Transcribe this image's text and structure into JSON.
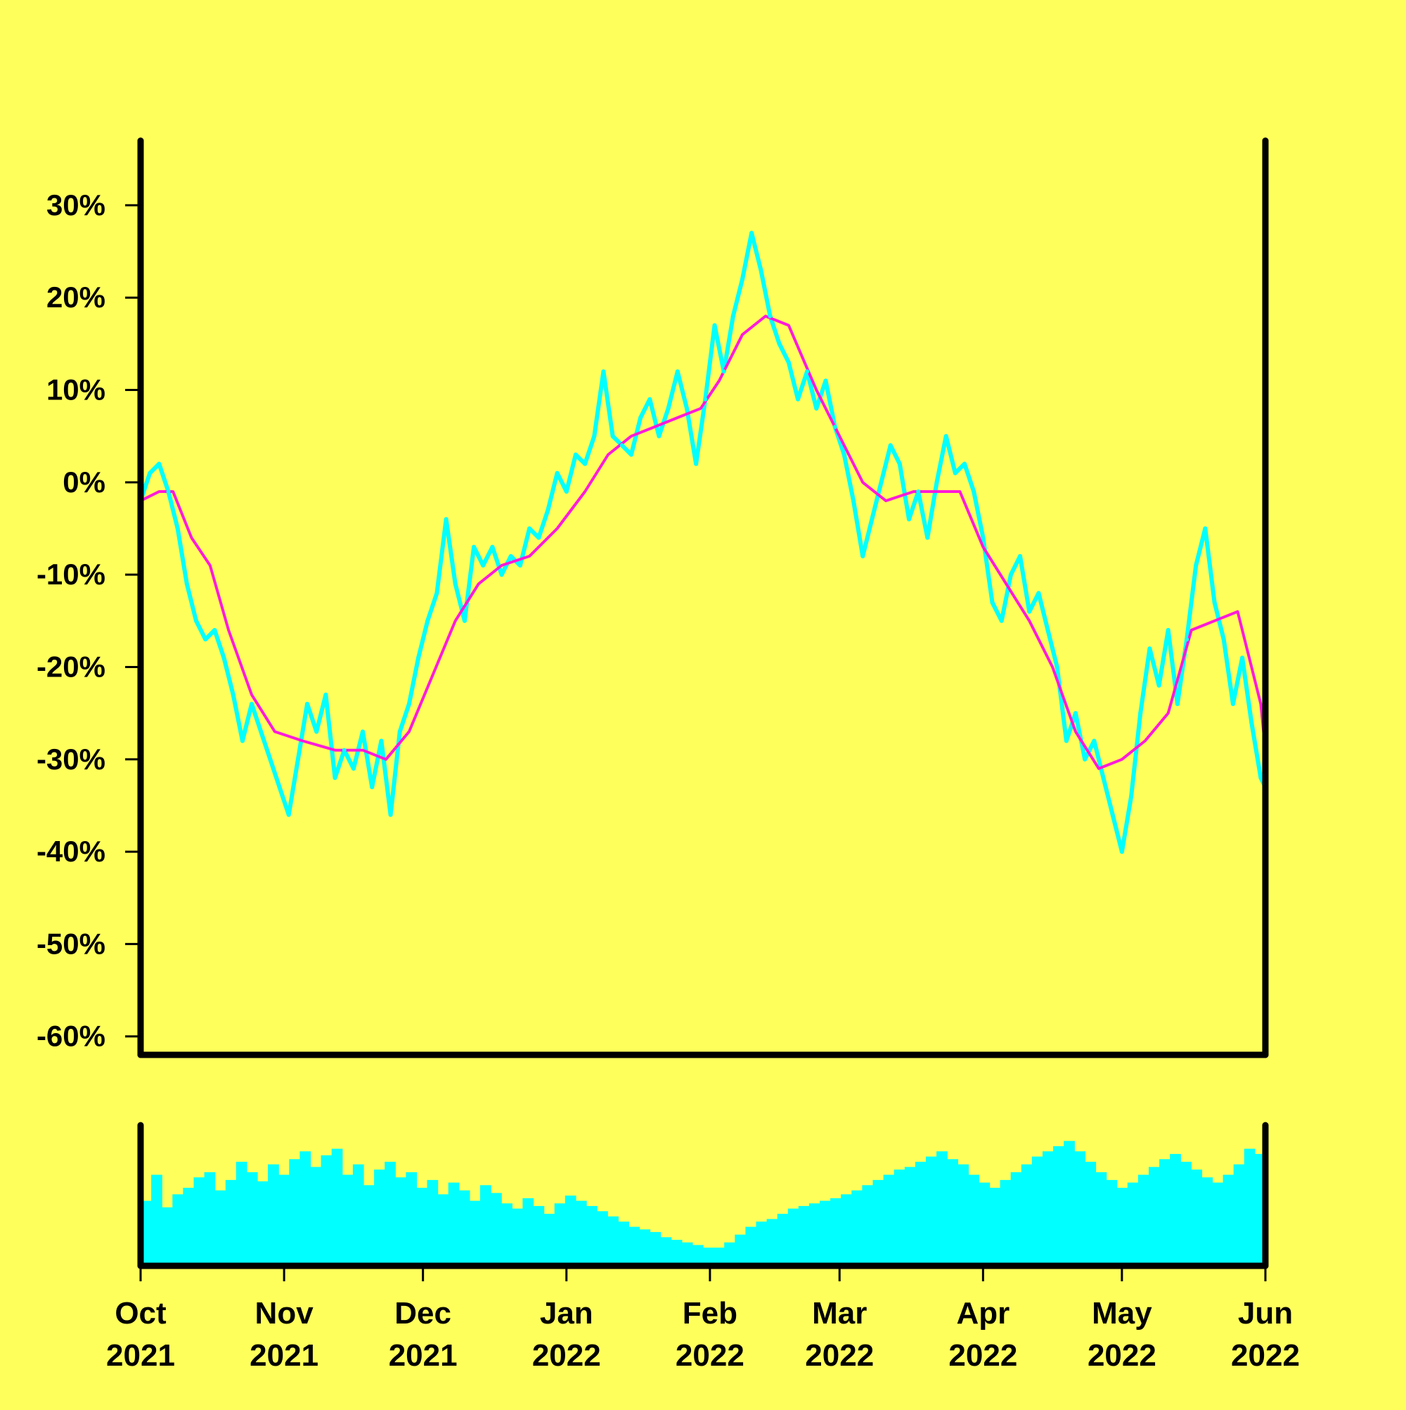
{
  "colors": {
    "background": "#ffff5c",
    "price": "#00ffff",
    "moving_average": "#ff1ad9",
    "volume": "#00ffff",
    "axis": "#000000"
  },
  "chart_data": {
    "type": "line",
    "title": "",
    "xlabel": "",
    "ylabel": "",
    "x_range": [
      "2021-10-01",
      "2022-06-01"
    ],
    "ylim": [
      -62,
      37
    ],
    "y_ticks": [
      30,
      20,
      10,
      0,
      -10,
      -20,
      -30,
      -40,
      -50,
      -60
    ],
    "y_tick_labels": [
      "30%",
      "20%",
      "10%",
      "0%",
      "-10%",
      "-20%",
      "-30%",
      "-40%",
      "-50%",
      "-60%"
    ],
    "x_ticks": [
      {
        "date": "2021-10-01",
        "month": "Oct",
        "year": "2021"
      },
      {
        "date": "2021-11-01",
        "month": "Nov",
        "year": "2021"
      },
      {
        "date": "2021-12-01",
        "month": "Dec",
        "year": "2021"
      },
      {
        "date": "2022-01-01",
        "month": "Jan",
        "year": "2022"
      },
      {
        "date": "2022-02-01",
        "month": "Feb",
        "year": "2022"
      },
      {
        "date": "2022-03-01",
        "month": "Mar",
        "year": "2022"
      },
      {
        "date": "2022-04-01",
        "month": "Apr",
        "year": "2022"
      },
      {
        "date": "2022-05-01",
        "month": "May",
        "year": "2022"
      },
      {
        "date": "2022-06-01",
        "month": "Jun",
        "year": "2022"
      }
    ],
    "grid": false,
    "legend": "none",
    "series": [
      {
        "key": "return",
        "points": [
          [
            "2021-10-01",
            -2
          ],
          [
            "2021-10-03",
            1
          ],
          [
            "2021-10-05",
            2
          ],
          [
            "2021-10-07",
            -1
          ],
          [
            "2021-10-09",
            -5
          ],
          [
            "2021-10-11",
            -11
          ],
          [
            "2021-10-13",
            -15
          ],
          [
            "2021-10-15",
            -17
          ],
          [
            "2021-10-17",
            -16
          ],
          [
            "2021-10-19",
            -19
          ],
          [
            "2021-10-21",
            -23
          ],
          [
            "2021-10-23",
            -28
          ],
          [
            "2021-10-25",
            -24
          ],
          [
            "2021-10-27",
            -27
          ],
          [
            "2021-10-29",
            -30
          ],
          [
            "2021-10-31",
            -33
          ],
          [
            "2021-11-02",
            -36
          ],
          [
            "2021-11-04",
            -30
          ],
          [
            "2021-11-06",
            -24
          ],
          [
            "2021-11-08",
            -27
          ],
          [
            "2021-11-10",
            -23
          ],
          [
            "2021-11-12",
            -32
          ],
          [
            "2021-11-14",
            -29
          ],
          [
            "2021-11-16",
            -31
          ],
          [
            "2021-11-18",
            -27
          ],
          [
            "2021-11-20",
            -33
          ],
          [
            "2021-11-22",
            -28
          ],
          [
            "2021-11-24",
            -36
          ],
          [
            "2021-11-26",
            -27
          ],
          [
            "2021-11-28",
            -24
          ],
          [
            "2021-11-30",
            -19
          ],
          [
            "2021-12-02",
            -15
          ],
          [
            "2021-12-04",
            -12
          ],
          [
            "2021-12-06",
            -4
          ],
          [
            "2021-12-08",
            -11
          ],
          [
            "2021-12-10",
            -15
          ],
          [
            "2021-12-12",
            -7
          ],
          [
            "2021-12-14",
            -9
          ],
          [
            "2021-12-16",
            -7
          ],
          [
            "2021-12-18",
            -10
          ],
          [
            "2021-12-20",
            -8
          ],
          [
            "2021-12-22",
            -9
          ],
          [
            "2021-12-24",
            -5
          ],
          [
            "2021-12-26",
            -6
          ],
          [
            "2021-12-28",
            -3
          ],
          [
            "2021-12-30",
            1
          ],
          [
            "2022-01-01",
            -1
          ],
          [
            "2022-01-03",
            3
          ],
          [
            "2022-01-05",
            2
          ],
          [
            "2022-01-07",
            5
          ],
          [
            "2022-01-09",
            12
          ],
          [
            "2022-01-11",
            5
          ],
          [
            "2022-01-13",
            4
          ],
          [
            "2022-01-15",
            3
          ],
          [
            "2022-01-17",
            7
          ],
          [
            "2022-01-19",
            9
          ],
          [
            "2022-01-21",
            5
          ],
          [
            "2022-01-23",
            8
          ],
          [
            "2022-01-25",
            12
          ],
          [
            "2022-01-27",
            8
          ],
          [
            "2022-01-29",
            2
          ],
          [
            "2022-01-31",
            9
          ],
          [
            "2022-02-02",
            17
          ],
          [
            "2022-02-04",
            12
          ],
          [
            "2022-02-06",
            18
          ],
          [
            "2022-02-08",
            22
          ],
          [
            "2022-02-10",
            27
          ],
          [
            "2022-02-12",
            23
          ],
          [
            "2022-02-14",
            18
          ],
          [
            "2022-02-16",
            15
          ],
          [
            "2022-02-18",
            13
          ],
          [
            "2022-02-20",
            9
          ],
          [
            "2022-02-22",
            12
          ],
          [
            "2022-02-24",
            8
          ],
          [
            "2022-02-26",
            11
          ],
          [
            "2022-02-28",
            6
          ],
          [
            "2022-03-02",
            3
          ],
          [
            "2022-03-04",
            -2
          ],
          [
            "2022-03-06",
            -8
          ],
          [
            "2022-03-08",
            -4
          ],
          [
            "2022-03-10",
            0
          ],
          [
            "2022-03-12",
            4
          ],
          [
            "2022-03-14",
            2
          ],
          [
            "2022-03-16",
            -4
          ],
          [
            "2022-03-18",
            -1
          ],
          [
            "2022-03-20",
            -6
          ],
          [
            "2022-03-22",
            0
          ],
          [
            "2022-03-24",
            5
          ],
          [
            "2022-03-26",
            1
          ],
          [
            "2022-03-28",
            2
          ],
          [
            "2022-03-30",
            -1
          ],
          [
            "2022-04-01",
            -6
          ],
          [
            "2022-04-03",
            -13
          ],
          [
            "2022-04-05",
            -15
          ],
          [
            "2022-04-07",
            -10
          ],
          [
            "2022-04-09",
            -8
          ],
          [
            "2022-04-11",
            -14
          ],
          [
            "2022-04-13",
            -12
          ],
          [
            "2022-04-15",
            -16
          ],
          [
            "2022-04-17",
            -20
          ],
          [
            "2022-04-19",
            -28
          ],
          [
            "2022-04-21",
            -25
          ],
          [
            "2022-04-23",
            -30
          ],
          [
            "2022-04-25",
            -28
          ],
          [
            "2022-04-27",
            -32
          ],
          [
            "2022-04-29",
            -36
          ],
          [
            "2022-05-01",
            -40
          ],
          [
            "2022-05-03",
            -34
          ],
          [
            "2022-05-05",
            -25
          ],
          [
            "2022-05-07",
            -18
          ],
          [
            "2022-05-09",
            -22
          ],
          [
            "2022-05-11",
            -16
          ],
          [
            "2022-05-13",
            -24
          ],
          [
            "2022-05-15",
            -17
          ],
          [
            "2022-05-17",
            -9
          ],
          [
            "2022-05-19",
            -5
          ],
          [
            "2022-05-21",
            -13
          ],
          [
            "2022-05-23",
            -17
          ],
          [
            "2022-05-25",
            -24
          ],
          [
            "2022-05-27",
            -19
          ],
          [
            "2022-05-29",
            -26
          ],
          [
            "2022-05-31",
            -32
          ],
          [
            "2022-06-01",
            -33
          ]
        ]
      },
      {
        "key": "moving_average",
        "points": [
          [
            "2021-10-01",
            -2
          ],
          [
            "2021-10-05",
            -1
          ],
          [
            "2021-10-08",
            -1
          ],
          [
            "2021-10-12",
            -6
          ],
          [
            "2021-10-16",
            -9
          ],
          [
            "2021-10-20",
            -16
          ],
          [
            "2021-10-25",
            -23
          ],
          [
            "2021-10-30",
            -27
          ],
          [
            "2021-11-05",
            -28
          ],
          [
            "2021-11-12",
            -29
          ],
          [
            "2021-11-18",
            -29
          ],
          [
            "2021-11-23",
            -30
          ],
          [
            "2021-11-28",
            -27
          ],
          [
            "2021-12-03",
            -21
          ],
          [
            "2021-12-08",
            -15
          ],
          [
            "2021-12-13",
            -11
          ],
          [
            "2021-12-18",
            -9
          ],
          [
            "2021-12-24",
            -8
          ],
          [
            "2021-12-30",
            -5
          ],
          [
            "2022-01-05",
            -1
          ],
          [
            "2022-01-10",
            3
          ],
          [
            "2022-01-15",
            5
          ],
          [
            "2022-01-20",
            6
          ],
          [
            "2022-01-25",
            7
          ],
          [
            "2022-01-30",
            8
          ],
          [
            "2022-02-03",
            11
          ],
          [
            "2022-02-08",
            16
          ],
          [
            "2022-02-13",
            18
          ],
          [
            "2022-02-18",
            17
          ],
          [
            "2022-02-24",
            10
          ],
          [
            "2022-03-01",
            5
          ],
          [
            "2022-03-06",
            0
          ],
          [
            "2022-03-11",
            -2
          ],
          [
            "2022-03-17",
            -1
          ],
          [
            "2022-03-22",
            -1
          ],
          [
            "2022-03-27",
            -1
          ],
          [
            "2022-04-01",
            -7
          ],
          [
            "2022-04-06",
            -11
          ],
          [
            "2022-04-11",
            -15
          ],
          [
            "2022-04-16",
            -20
          ],
          [
            "2022-04-21",
            -27
          ],
          [
            "2022-04-26",
            -31
          ],
          [
            "2022-05-01",
            -30
          ],
          [
            "2022-05-06",
            -28
          ],
          [
            "2022-05-11",
            -25
          ],
          [
            "2022-05-16",
            -16
          ],
          [
            "2022-05-21",
            -15
          ],
          [
            "2022-05-26",
            -14
          ],
          [
            "2022-05-31",
            -24
          ],
          [
            "2022-06-01",
            -29
          ]
        ]
      }
    ],
    "volume": {
      "type": "bar",
      "ylim": [
        0,
        100
      ],
      "values": [
        50,
        70,
        45,
        55,
        60,
        68,
        72,
        58,
        66,
        80,
        72,
        65,
        78,
        70,
        82,
        88,
        76,
        85,
        90,
        70,
        78,
        62,
        74,
        80,
        68,
        72,
        60,
        66,
        55,
        64,
        58,
        50,
        62,
        56,
        48,
        44,
        52,
        46,
        40,
        48,
        54,
        50,
        46,
        42,
        38,
        34,
        30,
        28,
        26,
        22,
        20,
        18,
        16,
        14,
        14,
        18,
        24,
        30,
        34,
        36,
        40,
        44,
        46,
        48,
        50,
        52,
        55,
        58,
        62,
        66,
        70,
        74,
        76,
        80,
        84,
        88,
        82,
        78,
        70,
        64,
        60,
        66,
        72,
        78,
        84,
        88,
        92,
        96,
        88,
        80,
        72,
        66,
        60,
        64,
        70,
        76,
        82,
        86,
        80,
        74,
        68,
        64,
        70,
        78,
        90,
        86
      ]
    }
  }
}
